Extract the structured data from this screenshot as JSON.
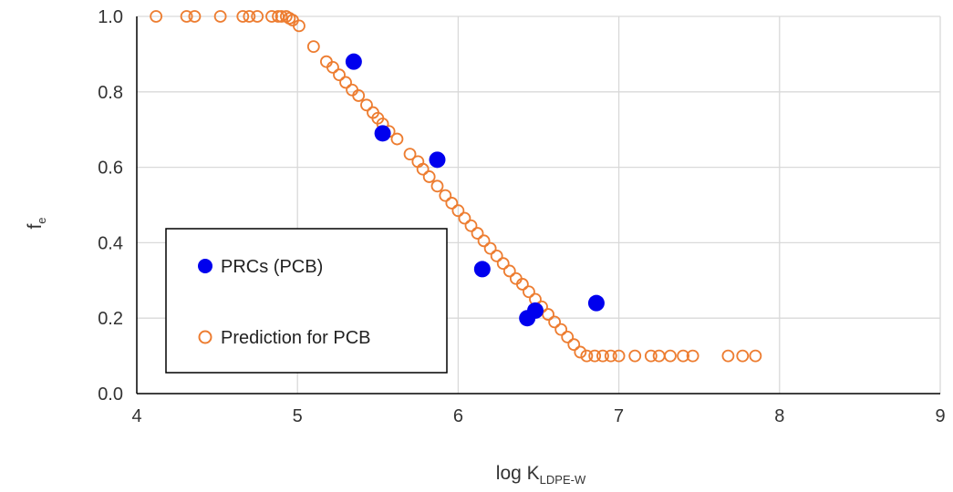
{
  "chart_data": {
    "type": "scatter",
    "title": "",
    "xlabel": {
      "main": "log K",
      "sub": "LDPE-W"
    },
    "ylabel": {
      "main": "f",
      "sub": "e"
    },
    "xlim": [
      4,
      9
    ],
    "ylim": [
      0,
      1.0
    ],
    "x_ticks": [
      "4",
      "5",
      "6",
      "7",
      "8",
      "9"
    ],
    "y_ticks": [
      "0.0",
      "0.2",
      "0.4",
      "0.6",
      "0.8",
      "1.0"
    ],
    "grid": true,
    "legend_position": "lower-left",
    "colors": {
      "prcs": "#0000ee",
      "prediction": "#ed7d31"
    },
    "series": [
      {
        "name": "PRCs (PCB)",
        "marker": "filled-circle",
        "points": [
          [
            5.35,
            0.88
          ],
          [
            5.53,
            0.69
          ],
          [
            5.87,
            0.62
          ],
          [
            6.15,
            0.33
          ],
          [
            6.43,
            0.2
          ],
          [
            6.48,
            0.22
          ],
          [
            6.86,
            0.24
          ]
        ]
      },
      {
        "name": "Prediction for PCB",
        "marker": "open-circle",
        "points": [
          [
            4.12,
            1.0
          ],
          [
            4.31,
            1.0
          ],
          [
            4.36,
            1.0
          ],
          [
            4.52,
            1.0
          ],
          [
            4.66,
            1.0
          ],
          [
            4.7,
            1.0
          ],
          [
            4.75,
            1.0
          ],
          [
            4.84,
            1.0
          ],
          [
            4.88,
            1.0
          ],
          [
            4.9,
            1.0
          ],
          [
            4.93,
            1.0
          ],
          [
            4.95,
            0.995
          ],
          [
            4.97,
            0.99
          ],
          [
            5.01,
            0.975
          ],
          [
            5.1,
            0.92
          ],
          [
            5.18,
            0.88
          ],
          [
            5.22,
            0.865
          ],
          [
            5.26,
            0.845
          ],
          [
            5.3,
            0.825
          ],
          [
            5.34,
            0.805
          ],
          [
            5.38,
            0.79
          ],
          [
            5.43,
            0.765
          ],
          [
            5.47,
            0.745
          ],
          [
            5.5,
            0.73
          ],
          [
            5.53,
            0.715
          ],
          [
            5.57,
            0.695
          ],
          [
            5.62,
            0.675
          ],
          [
            5.7,
            0.635
          ],
          [
            5.75,
            0.615
          ],
          [
            5.78,
            0.595
          ],
          [
            5.82,
            0.575
          ],
          [
            5.87,
            0.55
          ],
          [
            5.92,
            0.525
          ],
          [
            5.96,
            0.505
          ],
          [
            6.0,
            0.485
          ],
          [
            6.04,
            0.465
          ],
          [
            6.08,
            0.445
          ],
          [
            6.12,
            0.425
          ],
          [
            6.16,
            0.405
          ],
          [
            6.2,
            0.385
          ],
          [
            6.24,
            0.365
          ],
          [
            6.28,
            0.345
          ],
          [
            6.32,
            0.325
          ],
          [
            6.36,
            0.305
          ],
          [
            6.4,
            0.29
          ],
          [
            6.44,
            0.27
          ],
          [
            6.48,
            0.25
          ],
          [
            6.52,
            0.23
          ],
          [
            6.56,
            0.21
          ],
          [
            6.6,
            0.19
          ],
          [
            6.64,
            0.17
          ],
          [
            6.68,
            0.15
          ],
          [
            6.72,
            0.13
          ],
          [
            6.76,
            0.11
          ],
          [
            6.8,
            0.1
          ],
          [
            6.85,
            0.1
          ],
          [
            6.9,
            0.1
          ],
          [
            6.95,
            0.1
          ],
          [
            7.0,
            0.1
          ],
          [
            7.1,
            0.1
          ],
          [
            7.2,
            0.1
          ],
          [
            7.25,
            0.1
          ],
          [
            7.32,
            0.1
          ],
          [
            7.4,
            0.1
          ],
          [
            7.46,
            0.1
          ],
          [
            7.68,
            0.1
          ],
          [
            7.77,
            0.1
          ],
          [
            7.85,
            0.1
          ]
        ]
      }
    ]
  }
}
